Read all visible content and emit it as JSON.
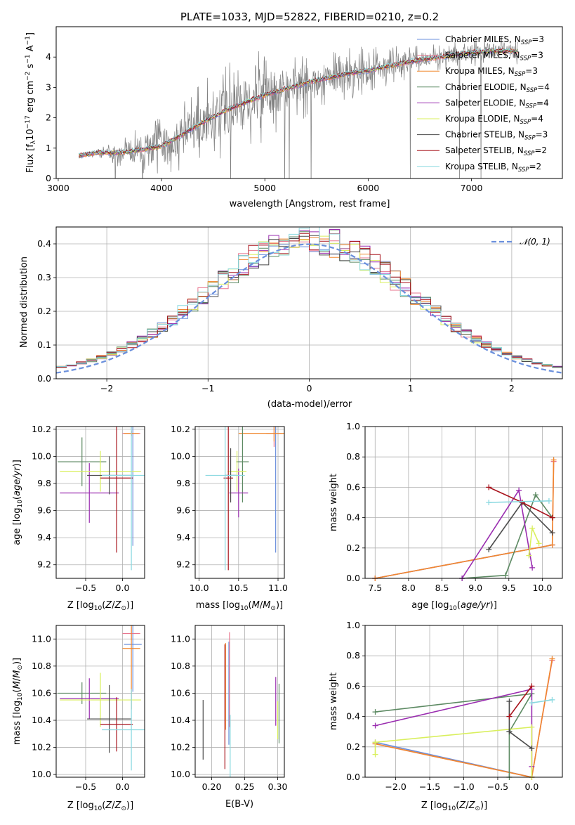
{
  "page": {
    "title": "PLATE=1033, MJD=52822, FIBERID=0210, z=0.2"
  },
  "colors": {
    "chabrier_miles": "#6a8fdc",
    "salpeter_miles": "#e8768f",
    "kroupa_miles": "#f0882f",
    "chabrier_elodie": "#5d8a63",
    "salpeter_elodie": "#9a2db0",
    "kroupa_elodie": "#d9ef5d",
    "chabrier_stelib": "#4a4a4a",
    "salpeter_stelib": "#a8131c",
    "kroupa_stelib": "#8ad9e0",
    "data": "#808080",
    "normal": "#6a8fdc"
  },
  "chart_data": [
    {
      "id": "spectrum",
      "type": "line",
      "xlabel": "wavelength [Angstrom, rest frame]",
      "ylabel": "Flux [f$_\\lambda$10$^{-17}$ erg cm$^{-2}$ s$^{-1}$ A$^{-1}$]",
      "xlim": [
        2980,
        7880
      ],
      "ylim": [
        0,
        5
      ],
      "xticks": [
        "3000",
        "4000",
        "5000",
        "6000",
        "7000"
      ],
      "yticks": [
        "0",
        "1",
        "2",
        "3",
        "4"
      ],
      "grid": false,
      "legend": "top-right",
      "legend_entries": [
        {
          "label": "Chabrier MILES, N$_{SSP}$=3",
          "color": "#6a8fdc"
        },
        {
          "label": "Salpeter MILES, N$_{SSP}$=3",
          "color": "#e8768f"
        },
        {
          "label": "Kroupa MILES, N$_{SSP}$=3",
          "color": "#f0882f"
        },
        {
          "label": "Chabrier ELODIE, N$_{SSP}$=4",
          "color": "#5d8a63"
        },
        {
          "label": "Salpeter ELODIE, N$_{SSP}$=4",
          "color": "#9a2db0"
        },
        {
          "label": "Kroupa ELODIE, N$_{SSP}$=4",
          "color": "#d9ef5d"
        },
        {
          "label": "Chabrier STELIB, N$_{SSP}$=3",
          "color": "#4a4a4a"
        },
        {
          "label": "Salpeter STELIB, N$_{SSP}$=2",
          "color": "#a8131c"
        },
        {
          "label": "Kroupa STELIB, N$_{SSP}$=2",
          "color": "#8ad9e0"
        }
      ],
      "model_x": [
        3200,
        3400,
        3600,
        3800,
        4000,
        4200,
        4400,
        4600,
        4800,
        5000,
        5200,
        5400,
        5600,
        5800,
        6000,
        6200,
        6400,
        6600,
        6800,
        7000,
        7200,
        7400
      ],
      "model_y": [
        0.75,
        0.85,
        0.85,
        0.95,
        1.05,
        1.45,
        1.85,
        2.2,
        2.5,
        2.75,
        2.95,
        3.15,
        3.3,
        3.45,
        3.55,
        3.7,
        3.85,
        3.95,
        4.05,
        4.15,
        4.2,
        4.2
      ],
      "data_noise_amplitude": [
        0.05,
        0.1,
        0.35,
        0.55,
        0.7,
        0.8,
        0.9,
        1.0,
        1.05,
        0.95,
        0.8,
        0.75,
        0.65,
        0.55,
        0.5,
        0.4,
        0.35,
        0.3,
        0.3,
        0.3,
        0.3,
        0.3
      ]
    },
    {
      "id": "residuals",
      "type": "step",
      "xlabel": "(data-model)/error",
      "ylabel": "Normed distribution",
      "xlim": [
        -2.5,
        2.5
      ],
      "ylim": [
        0,
        0.45
      ],
      "xticks": [
        "−2",
        "−1",
        "0",
        "1",
        "2"
      ],
      "yticks": [
        "0.0",
        "0.1",
        "0.2",
        "0.3",
        "0.4"
      ],
      "grid": true,
      "legend": "top-right",
      "legend_entries": [
        {
          "label": "𝒩(0, 1)",
          "color": "#6a8fdc"
        }
      ],
      "bin_width": 0.1
    },
    {
      "id": "age_vs_Z",
      "type": "errorbar",
      "xlabel": "Z [log$_{10}$(Z/Z$_\\odot$)]",
      "ylabel": "age [log$_{10}$(age/yr)]",
      "xlim": [
        -0.9,
        0.3
      ],
      "ylim": [
        9.1,
        10.22
      ],
      "xticks": [
        "−0.5",
        "0.0"
      ],
      "yticks": [
        "9.2",
        "9.4",
        "9.6",
        "9.8",
        "10.0",
        "10.2"
      ],
      "grid": true,
      "points": [
        {
          "model": "chabrier_miles",
          "x": 0.14,
          "y": 9.84,
          "xerr": 0.0,
          "yerr": 0.5
        },
        {
          "model": "salpeter_miles",
          "x": 0.12,
          "y": 10.17,
          "xerr": 0.12,
          "yerr": 0.02
        },
        {
          "model": "kroupa_miles",
          "x": 0.12,
          "y": 10.17,
          "xerr": 0.1,
          "yerr": 0.02
        },
        {
          "model": "chabrier_elodie",
          "x": -0.55,
          "y": 9.96,
          "xerr": 0.33,
          "yerr": 0.18
        },
        {
          "model": "salpeter_elodie",
          "x": -0.45,
          "y": 9.73,
          "xerr": 0.4,
          "yerr": 0.22
        },
        {
          "model": "kroupa_elodie",
          "x": -0.3,
          "y": 9.89,
          "xerr": 0.55,
          "yerr": 0.15
        },
        {
          "model": "chabrier_stelib",
          "x": -0.18,
          "y": 9.86,
          "xerr": 0.3,
          "yerr": 0.14
        },
        {
          "model": "salpeter_stelib",
          "x": -0.08,
          "y": 9.84,
          "xerr": 0.22,
          "yerr": 0.55
        },
        {
          "model": "kroupa_stelib",
          "x": 0.12,
          "y": 9.86,
          "xerr": 0.4,
          "yerr": 0.7
        }
      ]
    },
    {
      "id": "age_vs_mass",
      "type": "errorbar",
      "xlabel": "mass [log$_{10}$(M/M$_\\odot$)]",
      "ylabel": "",
      "xlim": [
        9.95,
        11.08
      ],
      "ylim": [
        9.1,
        10.22
      ],
      "xticks": [
        "10.0",
        "10.5",
        "11.0"
      ],
      "yticks": [
        "9.2",
        "9.4",
        "9.6",
        "9.8",
        "10.0",
        "10.2"
      ],
      "grid": true,
      "points": [
        {
          "model": "chabrier_miles",
          "x": 10.97,
          "y": 9.84,
          "xerr": 0.0,
          "yerr": 0.55
        },
        {
          "model": "salpeter_miles",
          "x": 10.95,
          "y": 10.17,
          "xerr": 0.1,
          "yerr": 0.1
        },
        {
          "model": "kroupa_miles",
          "x": 10.95,
          "y": 10.17,
          "xerr": 0.45,
          "yerr": 0.06
        },
        {
          "model": "chabrier_elodie",
          "x": 10.55,
          "y": 9.96,
          "xerr": 0.08,
          "yerr": 0.3
        },
        {
          "model": "salpeter_elodie",
          "x": 10.5,
          "y": 9.73,
          "xerr": 0.12,
          "yerr": 0.18
        },
        {
          "model": "kroupa_elodie",
          "x": 10.48,
          "y": 9.89,
          "xerr": 0.12,
          "yerr": 0.15
        },
        {
          "model": "chabrier_stelib",
          "x": 10.4,
          "y": 9.86,
          "xerr": 0.07,
          "yerr": 0.2
        },
        {
          "model": "salpeter_stelib",
          "x": 10.37,
          "y": 9.84,
          "xerr": 0.06,
          "yerr": 0.68
        },
        {
          "model": "kroupa_stelib",
          "x": 10.33,
          "y": 9.86,
          "xerr": 0.25,
          "yerr": 0.7
        }
      ]
    },
    {
      "id": "weight_vs_age",
      "type": "line",
      "xlabel": "age [log$_{10}$(age/yr)]",
      "ylabel": "mass weight",
      "xlim": [
        7.35,
        10.3
      ],
      "ylim": [
        0,
        1
      ],
      "xticks": [
        "7.5",
        "8.0",
        "8.5",
        "9.0",
        "9.5",
        "10.0"
      ],
      "yticks": [
        "0.0",
        "0.2",
        "0.4",
        "0.6",
        "0.8",
        "1.0"
      ],
      "grid": true,
      "series": [
        {
          "model": "chabrier_miles",
          "x": [
            7.5,
            10.15
          ],
          "y": [
            0.0,
            0.22
          ]
        },
        {
          "model": "salpeter_miles",
          "x": [
            7.5,
            10.15,
            10.17
          ],
          "y": [
            0.0,
            0.22,
            0.77
          ]
        },
        {
          "model": "kroupa_miles",
          "x": [
            7.5,
            10.15,
            10.17
          ],
          "y": [
            0.0,
            0.22,
            0.78
          ]
        },
        {
          "model": "chabrier_elodie",
          "x": [
            8.8,
            9.45,
            9.9,
            10.15
          ],
          "y": [
            0.0,
            0.02,
            0.55,
            0.4
          ]
        },
        {
          "model": "salpeter_elodie",
          "x": [
            8.8,
            9.65,
            9.85
          ],
          "y": [
            0.0,
            0.58,
            0.07
          ]
        },
        {
          "model": "kroupa_elodie",
          "x": [
            9.8,
            9.85,
            9.95
          ],
          "y": [
            0.15,
            0.33,
            0.23
          ]
        },
        {
          "model": "chabrier_stelib",
          "x": [
            9.2,
            9.7,
            10.15
          ],
          "y": [
            0.19,
            0.5,
            0.3
          ]
        },
        {
          "model": "salpeter_stelib",
          "x": [
            9.2,
            9.7,
            10.15
          ],
          "y": [
            0.6,
            0.5,
            0.4
          ]
        },
        {
          "model": "kroupa_stelib",
          "x": [
            9.2,
            10.1
          ],
          "y": [
            0.5,
            0.51
          ]
        }
      ]
    },
    {
      "id": "mass_vs_Z",
      "type": "errorbar",
      "xlabel": "Z [log$_{10}$(Z/Z$_\\odot$)]",
      "ylabel": "mass [log$_{10}$(M/M$_\\odot$)]",
      "xlim": [
        -0.9,
        0.3
      ],
      "ylim": [
        9.98,
        11.1
      ],
      "xticks": [
        "−0.5",
        "0.0"
      ],
      "yticks": [
        "10.0",
        "10.2",
        "10.4",
        "10.6",
        "10.8",
        "11.0"
      ],
      "grid": true,
      "points": [
        {
          "model": "chabrier_miles",
          "x": 0.14,
          "y": 10.96,
          "xerr": 0.12,
          "yerr": 0.35
        },
        {
          "model": "salpeter_miles",
          "x": 0.12,
          "y": 11.04,
          "xerr": 0.12,
          "yerr": 0.05
        },
        {
          "model": "kroupa_miles",
          "x": 0.12,
          "y": 10.93,
          "xerr": 0.12,
          "yerr": 0.45
        },
        {
          "model": "chabrier_elodie",
          "x": -0.55,
          "y": 10.6,
          "xerr": 0.33,
          "yerr": 0.08
        },
        {
          "model": "salpeter_elodie",
          "x": -0.45,
          "y": 10.56,
          "xerr": 0.4,
          "yerr": 0.15
        },
        {
          "model": "kroupa_elodie",
          "x": -0.3,
          "y": 10.55,
          "xerr": 0.55,
          "yerr": 0.2
        },
        {
          "model": "chabrier_stelib",
          "x": -0.18,
          "y": 10.41,
          "xerr": 0.3,
          "yerr": 0.25
        },
        {
          "model": "salpeter_stelib",
          "x": -0.08,
          "y": 10.37,
          "xerr": 0.22,
          "yerr": 0.2
        },
        {
          "model": "kroupa_stelib",
          "x": 0.12,
          "y": 10.33,
          "xerr": 0.4,
          "yerr": 0.3
        }
      ]
    },
    {
      "id": "mass_vs_ebv",
      "type": "errorbar",
      "xlabel": "E(B-V)",
      "ylabel": "",
      "xlim": [
        0.175,
        0.31
      ],
      "ylim": [
        9.98,
        11.1
      ],
      "xticks": [
        "0.20",
        "0.25",
        "0.30"
      ],
      "yticks": [
        "10.0",
        "10.2",
        "10.4",
        "10.6",
        "10.8",
        "11.0"
      ],
      "grid": true,
      "points": [
        {
          "model": "chabrier_miles",
          "x": 0.226,
          "y": 10.6,
          "xerr": 0.0,
          "yerr": 0.38
        },
        {
          "model": "salpeter_miles",
          "x": 0.227,
          "y": 10.7,
          "xerr": 0.0,
          "yerr": 0.35
        },
        {
          "model": "kroupa_miles",
          "x": 0.221,
          "y": 10.65,
          "xerr": 0.0,
          "yerr": 0.32
        },
        {
          "model": "chabrier_elodie",
          "x": 0.302,
          "y": 10.45,
          "xerr": 0.0,
          "yerr": 0.22
        },
        {
          "model": "salpeter_elodie",
          "x": 0.297,
          "y": 10.54,
          "xerr": 0.0,
          "yerr": 0.18
        },
        {
          "model": "kroupa_elodie",
          "x": 0.3,
          "y": 10.4,
          "xerr": 0.0,
          "yerr": 0.14
        },
        {
          "model": "chabrier_stelib",
          "x": 0.187,
          "y": 10.33,
          "xerr": 0.0,
          "yerr": 0.22
        },
        {
          "model": "salpeter_stelib",
          "x": 0.22,
          "y": 10.5,
          "xerr": 0.0,
          "yerr": 0.46
        },
        {
          "model": "kroupa_stelib",
          "x": 0.228,
          "y": 10.2,
          "xerr": 0.0,
          "yerr": 0.24
        }
      ]
    },
    {
      "id": "weight_vs_Z",
      "type": "line",
      "xlabel": "Z [log$_{10}$(Z/Z$_\\odot$)]",
      "ylabel": "mass weight",
      "xlim": [
        -2.45,
        0.45
      ],
      "ylim": [
        0,
        1
      ],
      "xticks": [
        "−2.0",
        "−1.5",
        "−1.0",
        "−0.5",
        "0.0"
      ],
      "yticks": [
        "0.0",
        "0.2",
        "0.4",
        "0.6",
        "0.8",
        "1.0"
      ],
      "grid": true,
      "series": [
        {
          "model": "chabrier_miles",
          "x": [
            -2.3,
            0.0
          ],
          "y": [
            0.23,
            0.0
          ]
        },
        {
          "model": "salpeter_miles",
          "x": [
            -2.3,
            0.0,
            0.3
          ],
          "y": [
            0.22,
            0.0,
            0.77
          ]
        },
        {
          "model": "kroupa_miles",
          "x": [
            -2.3,
            0.0,
            0.3
          ],
          "y": [
            0.22,
            0.0,
            0.78
          ]
        },
        {
          "model": "chabrier_elodie",
          "x": [
            -2.3,
            0.0,
            -0.33,
            -0.33
          ],
          "y": [
            0.43,
            0.55,
            0.3,
            0.0
          ]
        },
        {
          "model": "salpeter_elodie",
          "x": [
            -2.3,
            0.0,
            0.0
          ],
          "y": [
            0.34,
            0.58,
            0.07
          ]
        },
        {
          "model": "kroupa_elodie",
          "x": [
            -2.3,
            -2.3,
            0.0,
            0.0
          ],
          "y": [
            0.15,
            0.23,
            0.33,
            0.0
          ]
        },
        {
          "model": "chabrier_stelib",
          "x": [
            -0.33,
            -0.33,
            0.0
          ],
          "y": [
            0.5,
            0.3,
            0.19
          ]
        },
        {
          "model": "salpeter_stelib",
          "x": [
            -0.33,
            0.0
          ],
          "y": [
            0.4,
            0.6
          ]
        },
        {
          "model": "kroupa_stelib",
          "x": [
            0.0,
            0.3
          ],
          "y": [
            0.49,
            0.51
          ]
        }
      ]
    }
  ]
}
